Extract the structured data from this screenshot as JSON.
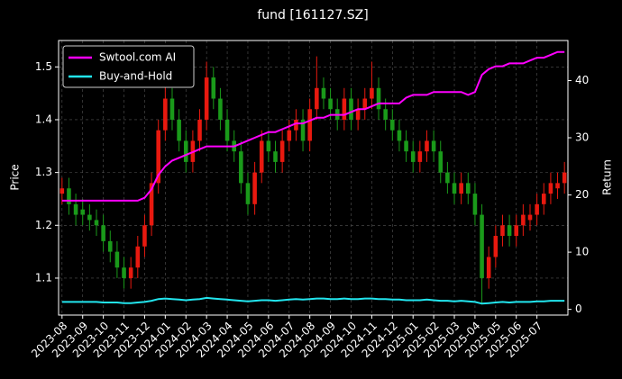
{
  "chart_data": {
    "type": "candlestick",
    "title": "fund [161127.SZ]",
    "ylabel": "Price",
    "y2label": "Return",
    "categories": [
      "2023-08",
      null,
      null,
      "2023-09",
      null,
      null,
      "2023-10",
      null,
      null,
      "2023-11",
      null,
      null,
      "2023-12",
      null,
      null,
      "2024-01",
      null,
      null,
      "2024-02",
      null,
      null,
      "2024-03",
      null,
      null,
      "2024-04",
      null,
      null,
      "2024-05",
      null,
      null,
      "2024-06",
      null,
      null,
      "2024-07",
      null,
      null,
      "2024-08",
      null,
      null,
      "2024-09",
      null,
      null,
      "2024-10",
      null,
      null,
      "2024-11",
      null,
      null,
      "2024-12",
      null,
      null,
      "2025-01",
      null,
      null,
      "2025-02",
      null,
      null,
      "2025-03",
      null,
      null,
      "2025-04",
      null,
      null,
      "2025-05",
      null,
      null,
      "2025-06",
      null,
      null,
      "2025-07",
      null,
      null,
      null,
      null
    ],
    "open": [
      1.26,
      1.27,
      1.24,
      1.23,
      1.22,
      1.21,
      1.2,
      1.17,
      1.15,
      1.12,
      1.1,
      1.12,
      1.16,
      1.2,
      1.28,
      1.38,
      1.44,
      1.4,
      1.36,
      1.32,
      1.36,
      1.4,
      1.48,
      1.44,
      1.4,
      1.36,
      1.34,
      1.28,
      1.24,
      1.3,
      1.36,
      1.34,
      1.32,
      1.36,
      1.38,
      1.4,
      1.36,
      1.42,
      1.46,
      1.44,
      1.42,
      1.4,
      1.44,
      1.4,
      1.42,
      1.44,
      1.46,
      1.42,
      1.4,
      1.38,
      1.36,
      1.34,
      1.32,
      1.34,
      1.36,
      1.34,
      1.3,
      1.28,
      1.26,
      1.28,
      1.26,
      1.22,
      1.1,
      1.14,
      1.18,
      1.2,
      1.18,
      1.2,
      1.21,
      1.22,
      1.24,
      1.26,
      1.27,
      1.28
    ],
    "high": [
      1.29,
      1.29,
      1.26,
      1.25,
      1.24,
      1.23,
      1.22,
      1.19,
      1.17,
      1.14,
      1.14,
      1.18,
      1.22,
      1.3,
      1.4,
      1.47,
      1.46,
      1.42,
      1.38,
      1.38,
      1.42,
      1.51,
      1.5,
      1.46,
      1.42,
      1.38,
      1.36,
      1.3,
      1.32,
      1.38,
      1.38,
      1.36,
      1.38,
      1.4,
      1.42,
      1.42,
      1.44,
      1.52,
      1.48,
      1.46,
      1.44,
      1.46,
      1.46,
      1.44,
      1.46,
      1.51,
      1.48,
      1.44,
      1.42,
      1.4,
      1.38,
      1.36,
      1.36,
      1.38,
      1.38,
      1.36,
      1.32,
      1.3,
      1.3,
      1.3,
      1.28,
      1.24,
      1.16,
      1.2,
      1.22,
      1.22,
      1.22,
      1.24,
      1.24,
      1.26,
      1.28,
      1.3,
      1.3,
      1.32
    ],
    "low": [
      1.24,
      1.22,
      1.2,
      1.2,
      1.19,
      1.18,
      1.15,
      1.13,
      1.1,
      1.08,
      1.08,
      1.1,
      1.14,
      1.18,
      1.26,
      1.36,
      1.38,
      1.34,
      1.3,
      1.3,
      1.34,
      1.38,
      1.42,
      1.38,
      1.34,
      1.32,
      1.26,
      1.22,
      1.22,
      1.28,
      1.32,
      1.3,
      1.3,
      1.34,
      1.36,
      1.34,
      1.34,
      1.4,
      1.42,
      1.4,
      1.38,
      1.38,
      1.38,
      1.38,
      1.4,
      1.42,
      1.4,
      1.38,
      1.36,
      1.34,
      1.32,
      1.3,
      1.3,
      1.32,
      1.32,
      1.28,
      1.26,
      1.24,
      1.24,
      1.24,
      1.2,
      1.05,
      1.08,
      1.12,
      1.16,
      1.16,
      1.16,
      1.18,
      1.19,
      1.2,
      1.22,
      1.24,
      1.25,
      1.26
    ],
    "close": [
      1.27,
      1.24,
      1.22,
      1.22,
      1.21,
      1.2,
      1.17,
      1.15,
      1.12,
      1.1,
      1.12,
      1.16,
      1.2,
      1.28,
      1.38,
      1.44,
      1.4,
      1.36,
      1.32,
      1.36,
      1.4,
      1.48,
      1.44,
      1.4,
      1.36,
      1.34,
      1.28,
      1.24,
      1.3,
      1.36,
      1.34,
      1.32,
      1.36,
      1.38,
      1.4,
      1.36,
      1.42,
      1.46,
      1.44,
      1.42,
      1.4,
      1.44,
      1.4,
      1.42,
      1.44,
      1.46,
      1.42,
      1.4,
      1.38,
      1.36,
      1.34,
      1.32,
      1.34,
      1.36,
      1.34,
      1.3,
      1.28,
      1.26,
      1.28,
      1.26,
      1.22,
      1.1,
      1.14,
      1.18,
      1.2,
      1.18,
      1.2,
      1.22,
      1.22,
      1.24,
      1.26,
      1.28,
      1.28,
      1.3
    ],
    "up_color": "#e8190f",
    "down_color": "#1a9a1a",
    "series": [
      {
        "name": "Swtool.com AI",
        "color": "#ff00ff",
        "axis": "y2",
        "values": [
          19,
          19,
          19,
          19,
          19,
          19,
          19,
          19,
          19,
          19,
          19,
          19,
          19.5,
          21,
          23.5,
          25,
          26,
          26.5,
          27,
          27.5,
          28,
          28.5,
          28.5,
          28.5,
          28.5,
          28.5,
          29,
          29.5,
          30,
          30.5,
          31,
          31,
          31.5,
          32,
          32.5,
          32.5,
          33,
          33.5,
          33.5,
          34,
          34,
          34,
          34.5,
          35,
          35,
          35.5,
          36,
          36,
          36,
          36,
          37,
          37.5,
          37.5,
          37.5,
          38,
          38,
          38,
          38,
          38,
          37.5,
          38,
          41,
          42,
          42.5,
          42.5,
          43,
          43,
          43,
          43.5,
          44,
          44,
          44.5,
          45,
          45
        ]
      },
      {
        "name": "Buy-and-Hold",
        "color": "#22e5ee",
        "axis": "y2",
        "values": [
          1.3,
          1.3,
          1.3,
          1.3,
          1.3,
          1.3,
          1.2,
          1.2,
          1.2,
          1.1,
          1.1,
          1.2,
          1.3,
          1.5,
          1.8,
          1.9,
          1.8,
          1.7,
          1.6,
          1.7,
          1.8,
          2.0,
          1.9,
          1.8,
          1.7,
          1.6,
          1.5,
          1.4,
          1.5,
          1.6,
          1.6,
          1.5,
          1.6,
          1.7,
          1.8,
          1.7,
          1.8,
          1.9,
          1.9,
          1.8,
          1.8,
          1.9,
          1.8,
          1.8,
          1.9,
          1.9,
          1.8,
          1.8,
          1.7,
          1.7,
          1.6,
          1.6,
          1.6,
          1.7,
          1.6,
          1.5,
          1.5,
          1.4,
          1.5,
          1.4,
          1.3,
          1.0,
          1.1,
          1.2,
          1.3,
          1.2,
          1.3,
          1.3,
          1.3,
          1.4,
          1.4,
          1.5,
          1.5,
          1.5
        ]
      }
    ],
    "ylim": [
      1.03,
      1.55
    ],
    "yticks": [
      1.1,
      1.2,
      1.3,
      1.4,
      1.5
    ],
    "y2lim": [
      -1,
      47
    ],
    "y2ticks": [
      0,
      10,
      20,
      30,
      40
    ],
    "grid": true,
    "legend": "upper left"
  }
}
